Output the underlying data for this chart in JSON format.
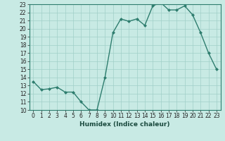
{
  "x": [
    0,
    1,
    2,
    3,
    4,
    5,
    6,
    7,
    8,
    9,
    10,
    11,
    12,
    13,
    14,
    15,
    16,
    17,
    18,
    19,
    20,
    21,
    22,
    23
  ],
  "y": [
    13.5,
    12.5,
    12.6,
    12.8,
    12.2,
    12.2,
    11.0,
    10.0,
    10.0,
    14.0,
    19.5,
    21.2,
    20.9,
    21.2,
    20.4,
    22.8,
    23.2,
    22.3,
    22.3,
    22.8,
    21.7,
    19.5,
    17.0,
    15.0
  ],
  "line_color": "#2e7d6e",
  "marker": "D",
  "marker_size": 2.0,
  "bg_color": "#c8eae4",
  "grid_color": "#a0cfc8",
  "xlabel": "Humidex (Indice chaleur)",
  "ylim": [
    10,
    23
  ],
  "xlim": [
    -0.5,
    23.5
  ],
  "yticks": [
    10,
    11,
    12,
    13,
    14,
    15,
    16,
    17,
    18,
    19,
    20,
    21,
    22,
    23
  ],
  "xticks": [
    0,
    1,
    2,
    3,
    4,
    5,
    6,
    7,
    8,
    9,
    10,
    11,
    12,
    13,
    14,
    15,
    16,
    17,
    18,
    19,
    20,
    21,
    22,
    23
  ],
  "xlabel_fontsize": 6.5,
  "tick_fontsize": 5.5,
  "linewidth": 1.0
}
